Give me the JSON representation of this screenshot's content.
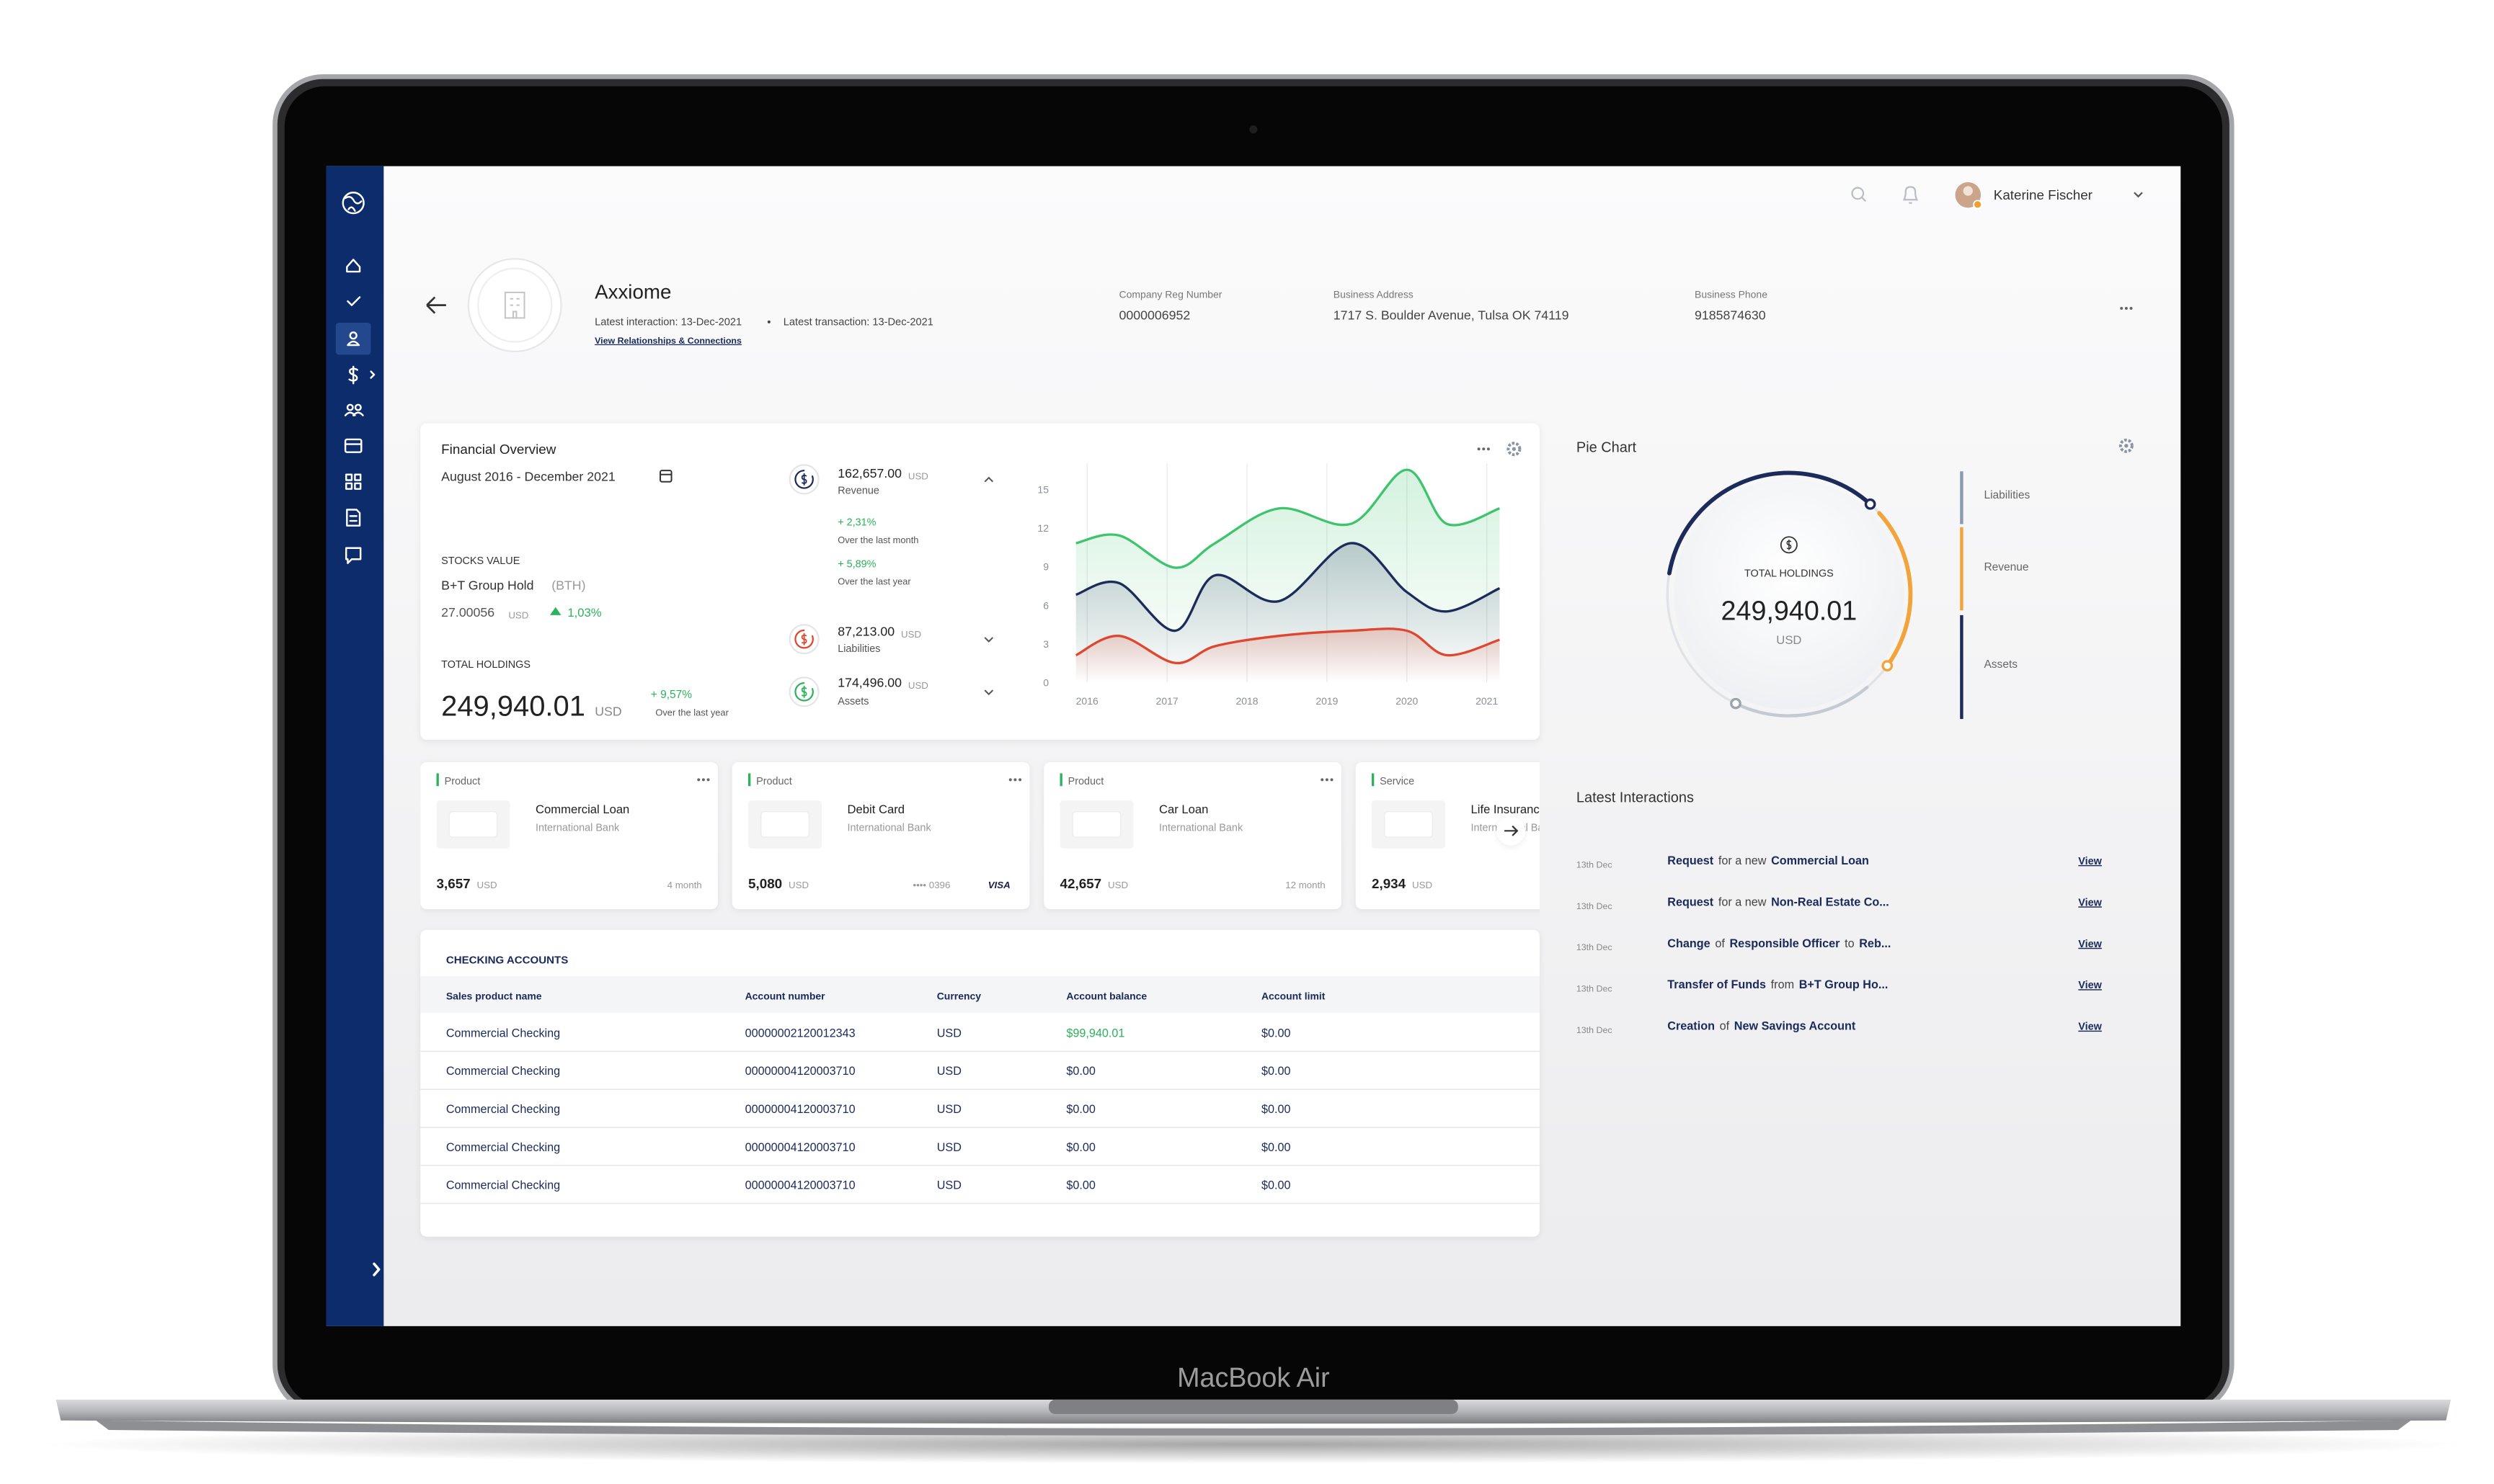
{
  "laptop_label": "MacBook Air",
  "top_bar": {
    "user_name": "Katerine Fischer"
  },
  "company": {
    "name": "Axxiome",
    "latest_interaction": "Latest interaction: 13-Dec-2021",
    "latest_transaction": "Latest transaction: 13-Dec-2021",
    "relationships_link": "View Relationships & Connections",
    "fields": [
      {
        "label": "Company Reg Number",
        "value": "0000006952"
      },
      {
        "label": "Business Address",
        "value": "1717 S. Boulder Avenue, Tulsa OK 74119"
      },
      {
        "label": "Business Phone",
        "value": "9185874630"
      }
    ]
  },
  "financial_overview": {
    "title": "Financial Overview",
    "period": "August 2016 - December 2021",
    "stocks_label": "STOCKS VALUE",
    "stock_name": "B+T Group Hold",
    "stock_ticker": "(BTH)",
    "stock_price": "27.00056",
    "stock_currency": "USD",
    "stock_change": "1,03%",
    "total_label": "TOTAL HOLDINGS",
    "total": "249,940.01",
    "total_currency": "USD",
    "total_change": "+ 9,57%",
    "total_change_note": "Over the last year",
    "metrics": [
      {
        "value": "162,657.00",
        "currency": "USD",
        "label": "Revenue",
        "changes": [
          {
            "change": "+ 2,31%",
            "note": "Over the last month"
          },
          {
            "change": "+ 5,89%",
            "note": "Over the last year"
          }
        ]
      },
      {
        "value": "87,213.00",
        "currency": "USD",
        "label": "Liabilities"
      },
      {
        "value": "174,496.00",
        "currency": "USD",
        "label": "Assets"
      }
    ],
    "chart_data": {
      "type": "line",
      "x": [
        2015.86,
        2016.4,
        2017.1,
        2017.6,
        2018.4,
        2019.3,
        2020.0,
        2020.5,
        2021.16
      ],
      "xlim": [
        2015.86,
        2021.16
      ],
      "xticks": [
        2016,
        2017,
        2018,
        2019,
        2020,
        2021
      ],
      "ylim": [
        0,
        17
      ],
      "yticks": [
        0,
        3,
        6,
        9,
        12,
        15
      ],
      "grid": "x",
      "series": [
        {
          "color": "#3ec46d",
          "values": [
            10.8,
            11.4,
            8.9,
            10.8,
            13.5,
            12.3,
            16.5,
            12.3,
            13.5
          ]
        },
        {
          "color": "#1d2b5a",
          "values": [
            6.8,
            7.7,
            4.0,
            8.3,
            6.3,
            10.8,
            7.0,
            5.5,
            7.3
          ]
        },
        {
          "color": "#e0462e",
          "values": [
            2.1,
            3.6,
            1.5,
            2.8,
            3.6,
            4.0,
            4.0,
            2.1,
            3.3
          ]
        }
      ]
    }
  },
  "products": [
    {
      "kind": "Product",
      "name": "Commercial Loan",
      "bank": "International Bank",
      "amount": "3,657",
      "currency": "USD",
      "term": "4 month"
    },
    {
      "kind": "Product",
      "name": "Debit Card",
      "bank": "International Bank",
      "amount": "5,080",
      "currency": "USD",
      "card_number": "•••• 0396",
      "card_brand": "VISA"
    },
    {
      "kind": "Product",
      "name": "Car Loan",
      "bank": "International Bank",
      "amount": "42,657",
      "currency": "USD",
      "term": "12 month"
    },
    {
      "kind": "Service",
      "name": "Life Insurance",
      "bank": "International Bank",
      "amount": "2,934",
      "currency": "USD"
    }
  ],
  "checking_accounts": {
    "title": "CHECKING ACCOUNTS",
    "columns": [
      "Sales product name",
      "Account number",
      "Currency",
      "Account balance",
      "Account limit"
    ],
    "rows": [
      [
        "Commercial Checking",
        "00000002120012343",
        "USD",
        "$99,940.01",
        "$0.00"
      ],
      [
        "Commercial Checking",
        "00000004120003710",
        "USD",
        "$0.00",
        "$0.00"
      ],
      [
        "Commercial Checking",
        "00000004120003710",
        "USD",
        "$0.00",
        "$0.00"
      ],
      [
        "Commercial Checking",
        "00000004120003710",
        "USD",
        "$0.00",
        "$0.00"
      ],
      [
        "Commercial Checking",
        "00000004120003710",
        "USD",
        "$0.00",
        "$0.00"
      ]
    ]
  },
  "pie_panel": {
    "title": "Pie Chart",
    "center_label": "TOTAL HOLDINGS",
    "center_value": "249,940.01",
    "center_currency": "USD",
    "legend": [
      "Liabilities",
      "Revenue",
      "Assets"
    ]
  },
  "interactions": {
    "title": "Latest Interactions",
    "items": [
      {
        "date": "13th Dec",
        "text": [
          "Request",
          "for a new",
          "Commercial Loan"
        ],
        "link": "View"
      },
      {
        "date": "13th Dec",
        "text": [
          "Request",
          "for a new",
          "Non-Real Estate Co..."
        ],
        "link": "View"
      },
      {
        "date": "13th Dec",
        "text": [
          "Change",
          "of",
          "Responsible Officer",
          "to",
          "Reb..."
        ],
        "link": "View"
      },
      {
        "date": "13th Dec",
        "text": [
          "Transfer of Funds",
          "from",
          "B+T Group Ho..."
        ],
        "link": "View"
      },
      {
        "date": "13th Dec",
        "text": [
          "Creation",
          "of",
          "New Savings Account"
        ],
        "link": "View"
      }
    ]
  }
}
